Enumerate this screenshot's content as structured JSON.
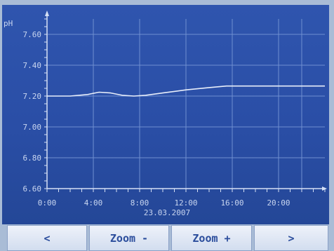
{
  "header": {
    "unit_label": "pH"
  },
  "chart_data": {
    "type": "line",
    "title": "",
    "ylabel": "pH",
    "xlabel": "",
    "date": "23.03.2007",
    "y_ticks": [
      "7.60",
      "7.40",
      "7.20",
      "7.00",
      "6.80",
      "6.60"
    ],
    "x_ticks": [
      "0:00",
      "4:00",
      "8:00",
      "12:00",
      "16:00",
      "20:00"
    ],
    "ylim": [
      6.6,
      7.7
    ],
    "xlim_hours": [
      0,
      24
    ],
    "grid": true,
    "series": [
      {
        "x_hours": [
          0,
          2,
          3.5,
          4.5,
          5.5,
          6.5,
          7.5,
          8.5,
          10,
          12,
          14,
          15.5,
          16.5,
          18,
          20,
          22,
          24
        ],
        "values": [
          7.2,
          7.2,
          7.21,
          7.225,
          7.22,
          7.205,
          7.2,
          7.205,
          7.22,
          7.24,
          7.255,
          7.265,
          7.265,
          7.265,
          7.265,
          7.265,
          7.265
        ]
      }
    ],
    "colors": {
      "line": "#e8eefa",
      "grid": "#6f8fd0",
      "axis": "#d5e0f5"
    }
  },
  "footer": {
    "prev_label": "<",
    "zoom_out_label": "Zoom -",
    "zoom_in_label": "Zoom +",
    "next_label": ">"
  }
}
